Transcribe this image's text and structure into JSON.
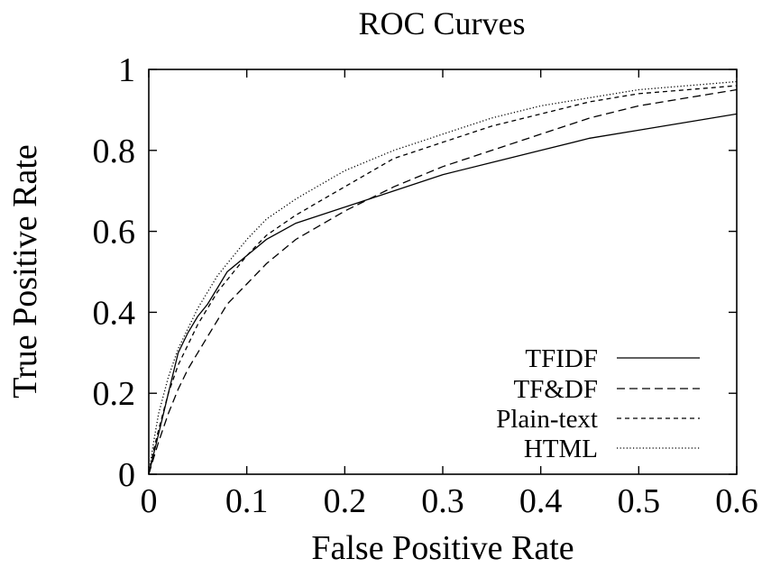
{
  "chart_data": {
    "type": "line",
    "title": "ROC Curves",
    "xlabel": "False Positive Rate",
    "ylabel": "True Positive Rate",
    "xlim": [
      0,
      0.6
    ],
    "ylim": [
      0,
      1
    ],
    "xticks": [
      "0",
      "0.1",
      "0.2",
      "0.3",
      "0.4",
      "0.5",
      "0.6"
    ],
    "yticks": [
      "0",
      "0.2",
      "0.4",
      "0.6",
      "0.8",
      "1"
    ],
    "grid": false,
    "legend_position": "bottom-right",
    "series": [
      {
        "name": "TFIDF",
        "dash": "solid",
        "points": [
          [
            0,
            0
          ],
          [
            0.005,
            0.05
          ],
          [
            0.01,
            0.1
          ],
          [
            0.02,
            0.2
          ],
          [
            0.03,
            0.3
          ],
          [
            0.04,
            0.35
          ],
          [
            0.05,
            0.39
          ],
          [
            0.06,
            0.42
          ],
          [
            0.07,
            0.46
          ],
          [
            0.08,
            0.5
          ],
          [
            0.1,
            0.54
          ],
          [
            0.12,
            0.58
          ],
          [
            0.15,
            0.62
          ],
          [
            0.2,
            0.66
          ],
          [
            0.25,
            0.7
          ],
          [
            0.3,
            0.74
          ],
          [
            0.35,
            0.77
          ],
          [
            0.4,
            0.8
          ],
          [
            0.45,
            0.83
          ],
          [
            0.5,
            0.85
          ],
          [
            0.55,
            0.87
          ],
          [
            0.6,
            0.89
          ]
        ]
      },
      {
        "name": "TF&DF",
        "dash": "long-dash",
        "points": [
          [
            0,
            0
          ],
          [
            0.005,
            0.04
          ],
          [
            0.01,
            0.08
          ],
          [
            0.02,
            0.15
          ],
          [
            0.03,
            0.21
          ],
          [
            0.04,
            0.26
          ],
          [
            0.05,
            0.3
          ],
          [
            0.06,
            0.34
          ],
          [
            0.07,
            0.38
          ],
          [
            0.08,
            0.42
          ],
          [
            0.1,
            0.47
          ],
          [
            0.12,
            0.52
          ],
          [
            0.15,
            0.58
          ],
          [
            0.2,
            0.65
          ],
          [
            0.25,
            0.71
          ],
          [
            0.3,
            0.76
          ],
          [
            0.35,
            0.8
          ],
          [
            0.4,
            0.84
          ],
          [
            0.45,
            0.88
          ],
          [
            0.5,
            0.91
          ],
          [
            0.55,
            0.93
          ],
          [
            0.6,
            0.95
          ]
        ]
      },
      {
        "name": "Plain-text",
        "dash": "short-dash",
        "points": [
          [
            0,
            0
          ],
          [
            0.005,
            0.06
          ],
          [
            0.01,
            0.11
          ],
          [
            0.02,
            0.2
          ],
          [
            0.03,
            0.27
          ],
          [
            0.04,
            0.32
          ],
          [
            0.05,
            0.37
          ],
          [
            0.06,
            0.41
          ],
          [
            0.07,
            0.45
          ],
          [
            0.08,
            0.48
          ],
          [
            0.1,
            0.54
          ],
          [
            0.12,
            0.59
          ],
          [
            0.15,
            0.64
          ],
          [
            0.2,
            0.71
          ],
          [
            0.25,
            0.78
          ],
          [
            0.3,
            0.82
          ],
          [
            0.35,
            0.86
          ],
          [
            0.4,
            0.89
          ],
          [
            0.45,
            0.92
          ],
          [
            0.5,
            0.94
          ],
          [
            0.55,
            0.95
          ],
          [
            0.6,
            0.96
          ]
        ]
      },
      {
        "name": "HTML",
        "dash": "dotted",
        "points": [
          [
            0,
            0
          ],
          [
            0.005,
            0.08
          ],
          [
            0.01,
            0.15
          ],
          [
            0.02,
            0.24
          ],
          [
            0.03,
            0.31
          ],
          [
            0.04,
            0.36
          ],
          [
            0.05,
            0.41
          ],
          [
            0.06,
            0.45
          ],
          [
            0.07,
            0.49
          ],
          [
            0.08,
            0.52
          ],
          [
            0.1,
            0.58
          ],
          [
            0.12,
            0.63
          ],
          [
            0.15,
            0.68
          ],
          [
            0.2,
            0.75
          ],
          [
            0.25,
            0.8
          ],
          [
            0.3,
            0.84
          ],
          [
            0.35,
            0.88
          ],
          [
            0.4,
            0.91
          ],
          [
            0.45,
            0.93
          ],
          [
            0.5,
            0.95
          ],
          [
            0.55,
            0.96
          ],
          [
            0.6,
            0.97
          ]
        ]
      }
    ]
  }
}
